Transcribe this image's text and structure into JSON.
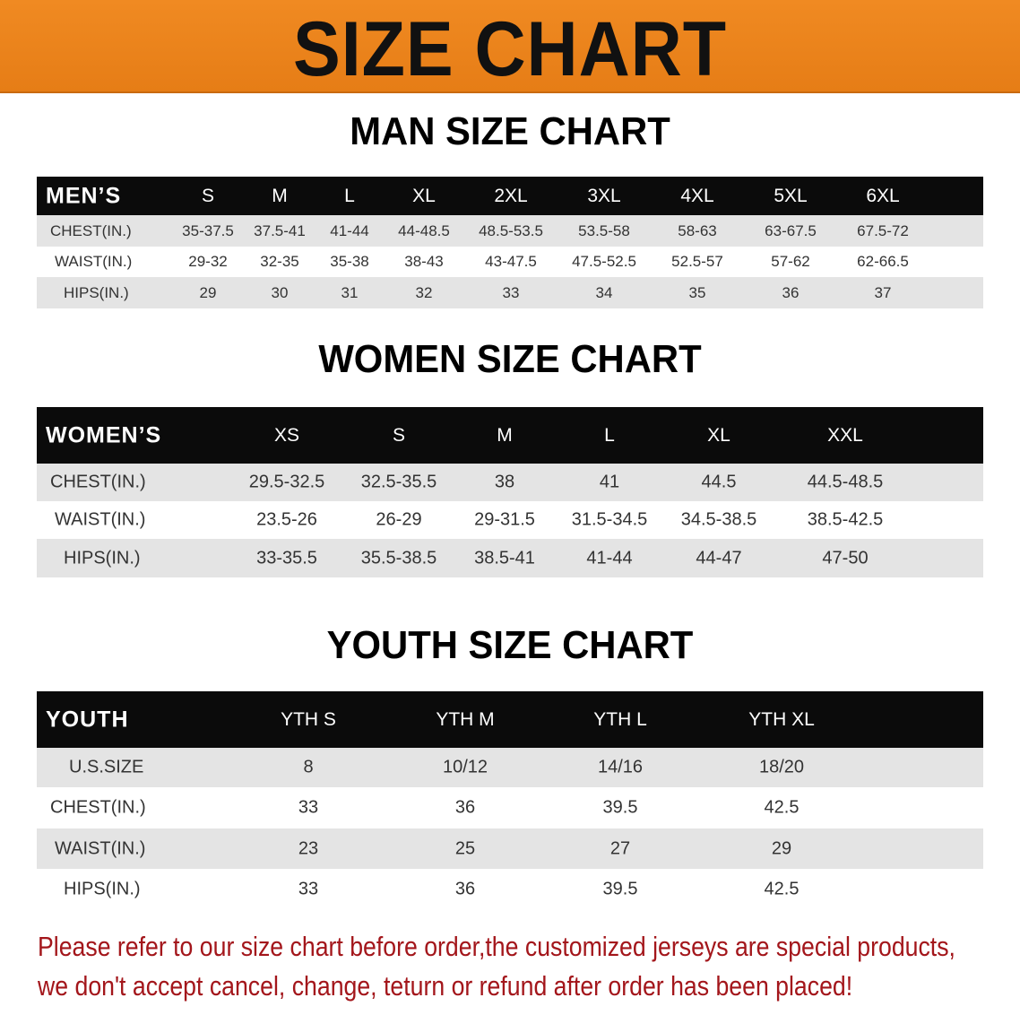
{
  "title": "SIZE CHART",
  "colors": {
    "banner": "#e67d16",
    "header_row": "#0b0b0b",
    "stripe": "#e4e4e4",
    "note": "#a3161b"
  },
  "men": {
    "heading": "MAN SIZE CHART",
    "columns": [
      "MEN’S",
      "S",
      "M",
      "L",
      "XL",
      "2XL",
      "3XL",
      "4XL",
      "5XL",
      "6XL"
    ],
    "rows": [
      [
        "CHEST(IN.)",
        "35-37.5",
        "37.5-41",
        "41-44",
        "44-48.5",
        "48.5-53.5",
        "53.5-58",
        "58-63",
        "63-67.5",
        "67.5-72"
      ],
      [
        "WAIST(IN.)",
        "29-32",
        "32-35",
        "35-38",
        "38-43",
        "43-47.5",
        "47.5-52.5",
        "52.5-57",
        "57-62",
        "62-66.5"
      ],
      [
        "HIPS(IN.)",
        "29",
        "30",
        "31",
        "32",
        "33",
        "34",
        "35",
        "36",
        "37"
      ]
    ]
  },
  "women": {
    "heading": "WOMEN SIZE CHART",
    "columns": [
      "WOMEN’S",
      "XS",
      "S",
      "M",
      "L",
      "XL",
      "XXL"
    ],
    "rows": [
      [
        "CHEST(IN.)",
        "29.5-32.5",
        "32.5-35.5",
        "38",
        "41",
        "44.5",
        "44.5-48.5"
      ],
      [
        "WAIST(IN.)",
        "23.5-26",
        "26-29",
        "29-31.5",
        "31.5-34.5",
        "34.5-38.5",
        "38.5-42.5"
      ],
      [
        "HIPS(IN.)",
        "33-35.5",
        "35.5-38.5",
        "38.5-41",
        "41-44",
        "44-47",
        "47-50"
      ]
    ]
  },
  "youth": {
    "heading": "YOUTH SIZE CHART",
    "columns": [
      "YOUTH",
      "YTH S",
      "YTH M",
      "YTH L",
      "YTH XL"
    ],
    "rows": [
      [
        "U.S.SIZE",
        "8",
        "10/12",
        "14/16",
        "18/20"
      ],
      [
        "CHEST(IN.)",
        "33",
        "36",
        "39.5",
        "42.5"
      ],
      [
        "WAIST(IN.)",
        "23",
        "25",
        "27",
        "29"
      ],
      [
        "HIPS(IN.)",
        "33",
        "36",
        "39.5",
        "42.5"
      ]
    ]
  },
  "note": {
    "line1": "Please refer to our size chart before order,the customized jerseys are special products,",
    "line2": "we don't accept cancel, change, teturn or refund after order has been placed!"
  }
}
